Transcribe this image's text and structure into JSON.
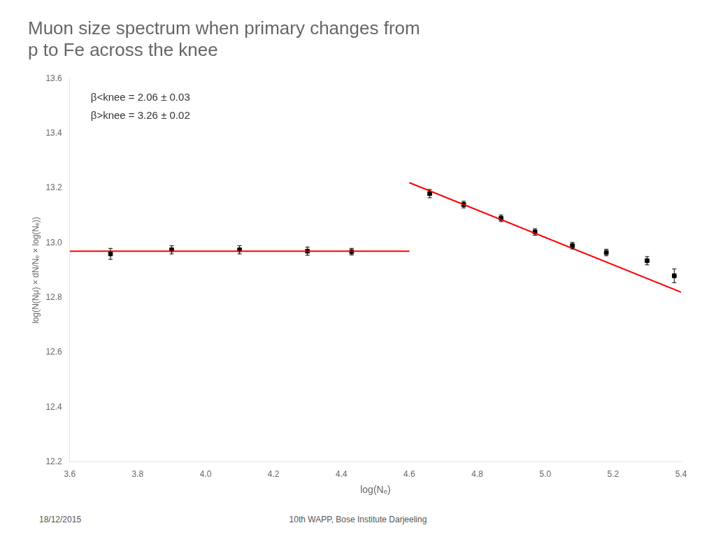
{
  "chart_data": {
    "type": "scatter",
    "title": [
      "Muon size spectrum when primary changes from",
      "p to Fe across the knee"
    ],
    "xlabel": "log(Nₑ)",
    "ylabel": "log(N(Nμ) × dN/Nₑ × log(Nₑ))",
    "xlim": [
      3.6,
      5.4
    ],
    "ylim": [
      12.2,
      13.6
    ],
    "xticks": [
      3.6,
      3.8,
      {
        "value": 4.0,
        "label": "4.0"
      },
      4.2,
      4.4,
      4.6,
      4.8,
      {
        "value": 5.0,
        "label": "5.0"
      },
      5.2,
      5.4
    ],
    "yticks": [
      12.2,
      12.4,
      12.6,
      12.8,
      {
        "value": 13.0,
        "label": "13.0"
      },
      13.2,
      13.4,
      13.6
    ],
    "grid": false,
    "series": [
      {
        "type": "line",
        "color": "red",
        "line_style": "solid",
        "marker": "none",
        "x": [
          3.6,
          4.6
        ],
        "values": [
          12.97,
          12.97
        ]
      },
      {
        "type": "line",
        "color": "red",
        "line_style": "solid",
        "marker": "none",
        "x": [
          4.6,
          5.4
        ],
        "values": [
          13.22,
          12.82
        ]
      },
      {
        "type": "scatter",
        "color": "black",
        "marker": "square",
        "x": [
          3.72,
          3.9,
          4.1,
          4.3,
          4.43
        ],
        "values": [
          12.96,
          12.975,
          12.975,
          12.97,
          12.968
        ],
        "yerr": [
          0.02,
          0.015,
          0.015,
          0.015,
          0.012
        ]
      },
      {
        "type": "scatter",
        "color": "black",
        "marker": "square",
        "x": [
          4.66,
          4.76,
          4.87,
          4.97,
          5.08,
          5.18,
          5.3,
          5.38
        ],
        "values": [
          13.18,
          13.14,
          13.09,
          13.04,
          12.99,
          12.965,
          12.935,
          12.88
        ],
        "yerr": [
          0.015,
          0.012,
          0.012,
          0.012,
          0.012,
          0.012,
          0.015,
          0.025
        ]
      }
    ],
    "annotations": [
      "β<knee = 2.06 ± 0.03",
      "β>knee = 3.26 ± 0.02"
    ],
    "footer": [
      "18/12/2015",
      "10th WAPP, Bose Institute Darjeeling"
    ]
  }
}
